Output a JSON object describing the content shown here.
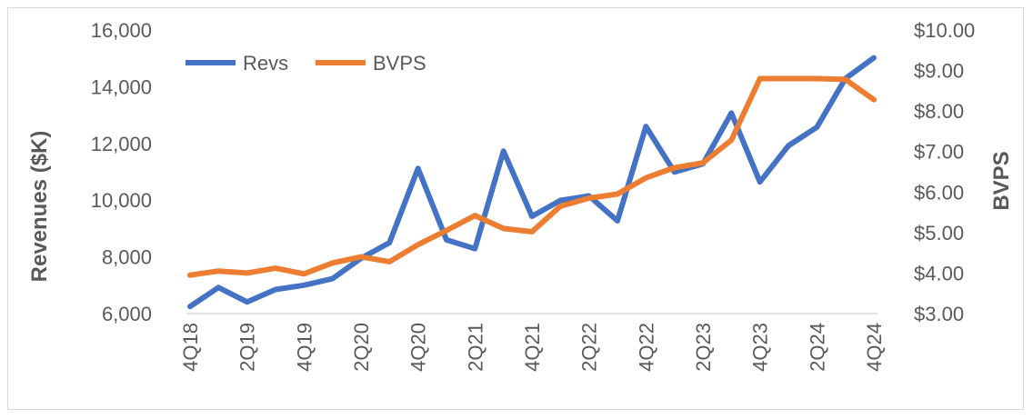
{
  "chart_data": {
    "type": "line",
    "title": "",
    "xlabel": "",
    "ylabel": "Revenues ($K)",
    "y2label": "BVPS",
    "ylim": [
      6000,
      16000
    ],
    "y2lim": [
      3.0,
      10.0
    ],
    "yticks": [
      "6,000",
      "8,000",
      "10,000",
      "12,000",
      "14,000",
      "16,000"
    ],
    "y2ticks": [
      "$3.00",
      "$4.00",
      "$5.00",
      "$6.00",
      "$7.00",
      "$8.00",
      "$9.00",
      "$10.00"
    ],
    "categories": [
      "4Q18",
      "1Q19",
      "2Q19",
      "3Q19",
      "4Q19",
      "1Q20",
      "2Q20",
      "3Q20",
      "4Q20",
      "1Q21",
      "2Q21",
      "3Q21",
      "4Q21",
      "1Q22",
      "2Q22",
      "3Q22",
      "4Q22",
      "1Q23",
      "2Q23",
      "3Q23",
      "4Q23",
      "1Q24",
      "2Q24",
      "3Q24",
      "4Q24"
    ],
    "xtick_labels": [
      "4Q18",
      "",
      "2Q19",
      "",
      "4Q19",
      "",
      "2Q20",
      "",
      "4Q20",
      "",
      "2Q21",
      "",
      "4Q21",
      "",
      "2Q22",
      "",
      "4Q22",
      "",
      "2Q23",
      "",
      "4Q23",
      "",
      "2Q24",
      "",
      "4Q24"
    ],
    "legend_position": "top-left",
    "grid": false,
    "series": [
      {
        "name": "Revs",
        "axis": "left",
        "color": "#4472c4",
        "values": [
          6250,
          6920,
          6410,
          6850,
          7000,
          7230,
          7950,
          8500,
          11120,
          8600,
          8290,
          11730,
          9430,
          9990,
          10150,
          9270,
          12600,
          10990,
          11280,
          13070,
          10640,
          11920,
          12570,
          14290,
          15020
        ]
      },
      {
        "name": "BVPS",
        "axis": "right",
        "color": "#ed7d31",
        "values": [
          3.95,
          4.05,
          4.0,
          4.12,
          3.98,
          4.25,
          4.4,
          4.28,
          4.7,
          5.05,
          5.42,
          5.1,
          5.02,
          5.65,
          5.85,
          5.95,
          6.35,
          6.6,
          6.72,
          7.28,
          8.8,
          8.8,
          8.8,
          8.78,
          8.28
        ]
      }
    ]
  }
}
